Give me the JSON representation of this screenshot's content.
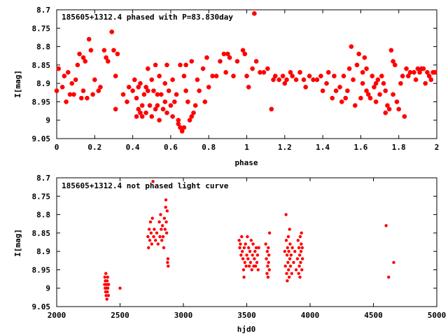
{
  "chart_data": [
    {
      "type": "scatter",
      "title": "185605+1312.4 phased with P=83.830day",
      "xlabel": "phase",
      "ylabel": "I[mag]",
      "xlim": [
        0,
        2
      ],
      "ylim": [
        9.05,
        8.7
      ],
      "y_inverted": true,
      "grid": false,
      "marker_color": "#ff0000",
      "xticks": [
        "0",
        "0.2",
        "0.4",
        "0.6",
        "0.8",
        "1",
        "1.2",
        "1.4",
        "1.6",
        "1.8",
        "2"
      ],
      "xtick_values": [
        0,
        0.2,
        0.4,
        0.6,
        0.8,
        1,
        1.2,
        1.4,
        1.6,
        1.8,
        2
      ],
      "yticks": [
        "8.7",
        "8.75",
        "8.8",
        "8.85",
        "8.9",
        "8.95",
        "9",
        "9.05"
      ],
      "ytick_values": [
        8.7,
        8.75,
        8.8,
        8.85,
        8.9,
        8.95,
        9,
        9.05
      ],
      "points": [
        [
          0.0,
          8.92
        ],
        [
          0.01,
          8.86
        ],
        [
          0.03,
          8.91
        ],
        [
          0.04,
          8.88
        ],
        [
          0.05,
          8.95
        ],
        [
          0.06,
          8.87
        ],
        [
          0.07,
          8.93
        ],
        [
          0.08,
          8.9
        ],
        [
          0.09,
          8.93
        ],
        [
          0.1,
          8.89
        ],
        [
          0.11,
          8.85
        ],
        [
          0.12,
          8.82
        ],
        [
          0.13,
          8.94
        ],
        [
          0.14,
          8.83
        ],
        [
          0.14,
          8.92
        ],
        [
          0.15,
          8.84
        ],
        [
          0.16,
          8.94
        ],
        [
          0.17,
          8.78
        ],
        [
          0.18,
          8.81
        ],
        [
          0.19,
          8.93
        ],
        [
          0.2,
          8.89
        ],
        [
          0.22,
          8.92
        ],
        [
          0.23,
          8.91
        ],
        [
          0.25,
          8.81
        ],
        [
          0.26,
          8.83
        ],
        [
          0.27,
          8.84
        ],
        [
          0.29,
          8.76
        ],
        [
          0.3,
          8.81
        ],
        [
          0.31,
          8.88
        ],
        [
          0.31,
          8.97
        ],
        [
          0.32,
          8.82
        ],
        [
          0.35,
          8.93
        ],
        [
          0.37,
          8.95
        ],
        [
          0.38,
          8.91
        ],
        [
          0.4,
          8.92
        ],
        [
          0.41,
          8.89
        ],
        [
          0.42,
          8.99
        ],
        [
          0.42,
          8.94
        ],
        [
          0.43,
          8.91
        ],
        [
          0.43,
          8.97
        ],
        [
          0.44,
          8.98
        ],
        [
          0.44,
          8.9
        ],
        [
          0.45,
          8.96
        ],
        [
          0.45,
          8.99
        ],
        [
          0.46,
          8.93
        ],
        [
          0.47,
          8.91
        ],
        [
          0.47,
          8.98
        ],
        [
          0.48,
          8.92
        ],
        [
          0.48,
          8.86
        ],
        [
          0.49,
          8.96
        ],
        [
          0.5,
          8.89
        ],
        [
          0.5,
          8.99
        ],
        [
          0.51,
          8.92
        ],
        [
          0.52,
          8.85
        ],
        [
          0.52,
          8.97
        ],
        [
          0.53,
          8.93
        ],
        [
          0.53,
          8.96
        ],
        [
          0.54,
          8.88
        ],
        [
          0.54,
          9.0
        ],
        [
          0.55,
          8.93
        ],
        [
          0.56,
          8.97
        ],
        [
          0.57,
          8.9
        ],
        [
          0.57,
          8.95
        ],
        [
          0.58,
          8.85
        ],
        [
          0.58,
          8.98
        ],
        [
          0.59,
          8.92
        ],
        [
          0.6,
          8.96
        ],
        [
          0.61,
          8.89
        ],
        [
          0.61,
          8.99
        ],
        [
          0.62,
          8.95
        ],
        [
          0.63,
          8.93
        ],
        [
          0.64,
          9.0
        ],
        [
          0.64,
          9.01
        ],
        [
          0.65,
          8.85
        ],
        [
          0.65,
          9.02
        ],
        [
          0.66,
          9.03
        ],
        [
          0.67,
          8.88
        ],
        [
          0.67,
          9.02
        ],
        [
          0.68,
          8.92
        ],
        [
          0.68,
          8.85
        ],
        [
          0.69,
          8.95
        ],
        [
          0.7,
          9.0
        ],
        [
          0.71,
          8.84
        ],
        [
          0.71,
          8.99
        ],
        [
          0.72,
          8.98
        ],
        [
          0.73,
          8.96
        ],
        [
          0.74,
          8.89
        ],
        [
          0.75,
          8.92
        ],
        [
          0.77,
          8.86
        ],
        [
          0.78,
          8.95
        ],
        [
          0.79,
          8.83
        ],
        [
          0.8,
          8.91
        ],
        [
          0.82,
          8.88
        ],
        [
          0.84,
          8.88
        ],
        [
          0.86,
          8.84
        ],
        [
          0.88,
          8.82
        ],
        [
          0.89,
          8.87
        ],
        [
          0.9,
          8.82
        ],
        [
          0.91,
          8.83
        ],
        [
          0.93,
          8.88
        ],
        [
          0.95,
          8.84
        ],
        [
          0.98,
          8.81
        ],
        [
          0.99,
          8.82
        ],
        [
          1.0,
          8.88
        ],
        [
          1.01,
          8.91
        ],
        [
          1.03,
          8.86
        ],
        [
          1.04,
          8.71
        ],
        [
          1.05,
          8.84
        ],
        [
          1.07,
          8.87
        ],
        [
          1.09,
          8.87
        ],
        [
          1.11,
          8.86
        ],
        [
          1.13,
          8.97
        ],
        [
          1.14,
          8.89
        ],
        [
          1.15,
          8.88
        ],
        [
          1.17,
          8.89
        ],
        [
          1.19,
          8.88
        ],
        [
          1.2,
          8.9
        ],
        [
          1.21,
          8.89
        ],
        [
          1.23,
          8.87
        ],
        [
          1.24,
          8.88
        ],
        [
          1.26,
          8.89
        ],
        [
          1.28,
          8.87
        ],
        [
          1.3,
          8.89
        ],
        [
          1.31,
          8.91
        ],
        [
          1.33,
          8.88
        ],
        [
          1.35,
          8.89
        ],
        [
          1.37,
          8.89
        ],
        [
          1.39,
          8.88
        ],
        [
          1.4,
          8.92
        ],
        [
          1.42,
          8.9
        ],
        [
          1.43,
          8.87
        ],
        [
          1.45,
          8.94
        ],
        [
          1.46,
          8.88
        ],
        [
          1.47,
          8.92
        ],
        [
          1.49,
          8.91
        ],
        [
          1.5,
          8.95
        ],
        [
          1.51,
          8.88
        ],
        [
          1.52,
          8.94
        ],
        [
          1.53,
          8.92
        ],
        [
          1.54,
          8.86
        ],
        [
          1.55,
          8.8
        ],
        [
          1.56,
          8.89
        ],
        [
          1.57,
          8.96
        ],
        [
          1.58,
          8.85
        ],
        [
          1.59,
          8.82
        ],
        [
          1.6,
          8.94
        ],
        [
          1.61,
          8.9
        ],
        [
          1.61,
          8.87
        ],
        [
          1.62,
          8.83
        ],
        [
          1.63,
          8.92
        ],
        [
          1.63,
          8.86
        ],
        [
          1.64,
          8.93
        ],
        [
          1.65,
          8.94
        ],
        [
          1.66,
          8.88
        ],
        [
          1.67,
          8.91
        ],
        [
          1.68,
          8.9
        ],
        [
          1.68,
          8.95
        ],
        [
          1.69,
          8.89
        ],
        [
          1.7,
          8.93
        ],
        [
          1.71,
          8.88
        ],
        [
          1.72,
          8.9
        ],
        [
          1.73,
          8.98
        ],
        [
          1.73,
          8.92
        ],
        [
          1.74,
          8.96
        ],
        [
          1.75,
          8.97
        ],
        [
          1.76,
          8.81
        ],
        [
          1.77,
          8.93
        ],
        [
          1.77,
          8.84
        ],
        [
          1.78,
          8.85
        ],
        [
          1.79,
          8.95
        ],
        [
          1.8,
          8.97
        ],
        [
          1.81,
          8.9
        ],
        [
          1.82,
          8.88
        ],
        [
          1.83,
          8.99
        ],
        [
          1.84,
          8.86
        ],
        [
          1.85,
          8.88
        ],
        [
          1.86,
          8.87
        ],
        [
          1.88,
          8.87
        ],
        [
          1.89,
          8.89
        ],
        [
          1.9,
          8.86
        ],
        [
          1.91,
          8.87
        ],
        [
          1.92,
          8.86
        ],
        [
          1.93,
          8.86
        ],
        [
          1.94,
          8.9
        ],
        [
          1.95,
          8.87
        ],
        [
          1.96,
          8.88
        ],
        [
          1.97,
          8.89
        ],
        [
          1.98,
          8.87
        ],
        [
          1.99,
          8.87
        ]
      ]
    },
    {
      "type": "scatter",
      "title": "185605+1312.4 not phased light curve",
      "xlabel": "hjd0",
      "ylabel": "I[mag]",
      "xlim": [
        2000,
        5000
      ],
      "ylim": [
        9.05,
        8.7
      ],
      "y_inverted": true,
      "grid": false,
      "marker_color": "#ff0000",
      "xticks": [
        "2000",
        "2500",
        "3000",
        "3500",
        "4000",
        "4500",
        "5000"
      ],
      "xtick_values": [
        2000,
        2500,
        3000,
        3500,
        4000,
        4500,
        5000
      ],
      "yticks": [
        "8.7",
        "8.75",
        "8.8",
        "8.85",
        "8.9",
        "8.95",
        "9",
        "9.05"
      ],
      "ytick_values": [
        8.7,
        8.75,
        8.8,
        8.85,
        8.9,
        8.95,
        9,
        9.05
      ],
      "points": [
        [
          2378,
          8.99
        ],
        [
          2380,
          8.97
        ],
        [
          2382,
          9.0
        ],
        [
          2384,
          8.98
        ],
        [
          2386,
          9.01
        ],
        [
          2388,
          8.96
        ],
        [
          2390,
          9.02
        ],
        [
          2392,
          8.99
        ],
        [
          2394,
          9.0
        ],
        [
          2396,
          9.03
        ],
        [
          2398,
          8.98
        ],
        [
          2400,
          9.01
        ],
        [
          2402,
          8.97
        ],
        [
          2404,
          9.0
        ],
        [
          2406,
          8.99
        ],
        [
          2408,
          9.02
        ],
        [
          2410,
          8.99
        ],
        [
          2500,
          9.0
        ],
        [
          2720,
          8.86
        ],
        [
          2725,
          8.89
        ],
        [
          2730,
          8.84
        ],
        [
          2735,
          8.87
        ],
        [
          2740,
          8.82
        ],
        [
          2745,
          8.85
        ],
        [
          2750,
          8.88
        ],
        [
          2755,
          8.81
        ],
        [
          2760,
          8.71
        ],
        [
          2765,
          8.86
        ],
        [
          2770,
          8.84
        ],
        [
          2780,
          8.87
        ],
        [
          2790,
          8.85
        ],
        [
          2800,
          8.88
        ],
        [
          2810,
          8.82
        ],
        [
          2815,
          8.86
        ],
        [
          2820,
          8.8
        ],
        [
          2825,
          8.84
        ],
        [
          2830,
          8.87
        ],
        [
          2835,
          8.83
        ],
        [
          2840,
          8.86
        ],
        [
          2845,
          8.89
        ],
        [
          2850,
          8.81
        ],
        [
          2855,
          8.84
        ],
        [
          2860,
          8.78
        ],
        [
          2862,
          8.76
        ],
        [
          2865,
          8.82
        ],
        [
          2868,
          8.85
        ],
        [
          2872,
          8.79
        ],
        [
          2875,
          8.93
        ],
        [
          2878,
          8.92
        ],
        [
          2880,
          8.94
        ],
        [
          3440,
          8.87
        ],
        [
          3445,
          8.89
        ],
        [
          3450,
          8.88
        ],
        [
          3455,
          8.91
        ],
        [
          3460,
          8.86
        ],
        [
          3465,
          8.9
        ],
        [
          3470,
          8.92
        ],
        [
          3475,
          8.95
        ],
        [
          3478,
          8.97
        ],
        [
          3480,
          8.89
        ],
        [
          3485,
          8.93
        ],
        [
          3490,
          8.88
        ],
        [
          3495,
          8.94
        ],
        [
          3500,
          8.91
        ],
        [
          3505,
          8.86
        ],
        [
          3510,
          8.92
        ],
        [
          3515,
          8.89
        ],
        [
          3520,
          8.94
        ],
        [
          3525,
          8.9
        ],
        [
          3530,
          8.93
        ],
        [
          3535,
          8.87
        ],
        [
          3540,
          8.95
        ],
        [
          3545,
          8.91
        ],
        [
          3550,
          8.88
        ],
        [
          3555,
          8.94
        ],
        [
          3560,
          8.92
        ],
        [
          3565,
          8.9
        ],
        [
          3570,
          8.94
        ],
        [
          3575,
          8.89
        ],
        [
          3580,
          8.93
        ],
        [
          3585,
          8.91
        ],
        [
          3590,
          8.95
        ],
        [
          3595,
          8.89
        ],
        [
          3650,
          8.88
        ],
        [
          3655,
          8.92
        ],
        [
          3660,
          8.96
        ],
        [
          3662,
          8.9
        ],
        [
          3665,
          8.94
        ],
        [
          3668,
          8.97
        ],
        [
          3670,
          8.89
        ],
        [
          3672,
          8.93
        ],
        [
          3675,
          8.91
        ],
        [
          3678,
          8.95
        ],
        [
          3680,
          8.85
        ],
        [
          3800,
          8.9
        ],
        [
          3805,
          8.94
        ],
        [
          3810,
          8.8
        ],
        [
          3812,
          8.87
        ],
        [
          3815,
          8.96
        ],
        [
          3818,
          8.91
        ],
        [
          3820,
          8.98
        ],
        [
          3822,
          8.89
        ],
        [
          3825,
          8.93
        ],
        [
          3828,
          8.86
        ],
        [
          3830,
          8.95
        ],
        [
          3832,
          8.9
        ],
        [
          3835,
          8.97
        ],
        [
          3838,
          8.84
        ],
        [
          3840,
          8.92
        ],
        [
          3842,
          8.88
        ],
        [
          3845,
          8.94
        ],
        [
          3850,
          8.91
        ],
        [
          3855,
          8.96
        ],
        [
          3860,
          8.89
        ],
        [
          3870,
          8.93
        ],
        [
          3880,
          8.9
        ],
        [
          3890,
          8.95
        ],
        [
          3900,
          8.92
        ],
        [
          3905,
          8.87
        ],
        [
          3910,
          8.96
        ],
        [
          3912,
          8.89
        ],
        [
          3915,
          8.94
        ],
        [
          3918,
          8.91
        ],
        [
          3920,
          8.97
        ],
        [
          3922,
          8.86
        ],
        [
          3925,
          8.93
        ],
        [
          3928,
          8.9
        ],
        [
          3930,
          8.88
        ],
        [
          3932,
          8.85
        ],
        [
          3935,
          8.95
        ],
        [
          3938,
          8.89
        ],
        [
          3940,
          8.92
        ],
        [
          4600,
          8.83
        ],
        [
          4620,
          8.97
        ],
        [
          4660,
          8.93
        ]
      ]
    }
  ]
}
